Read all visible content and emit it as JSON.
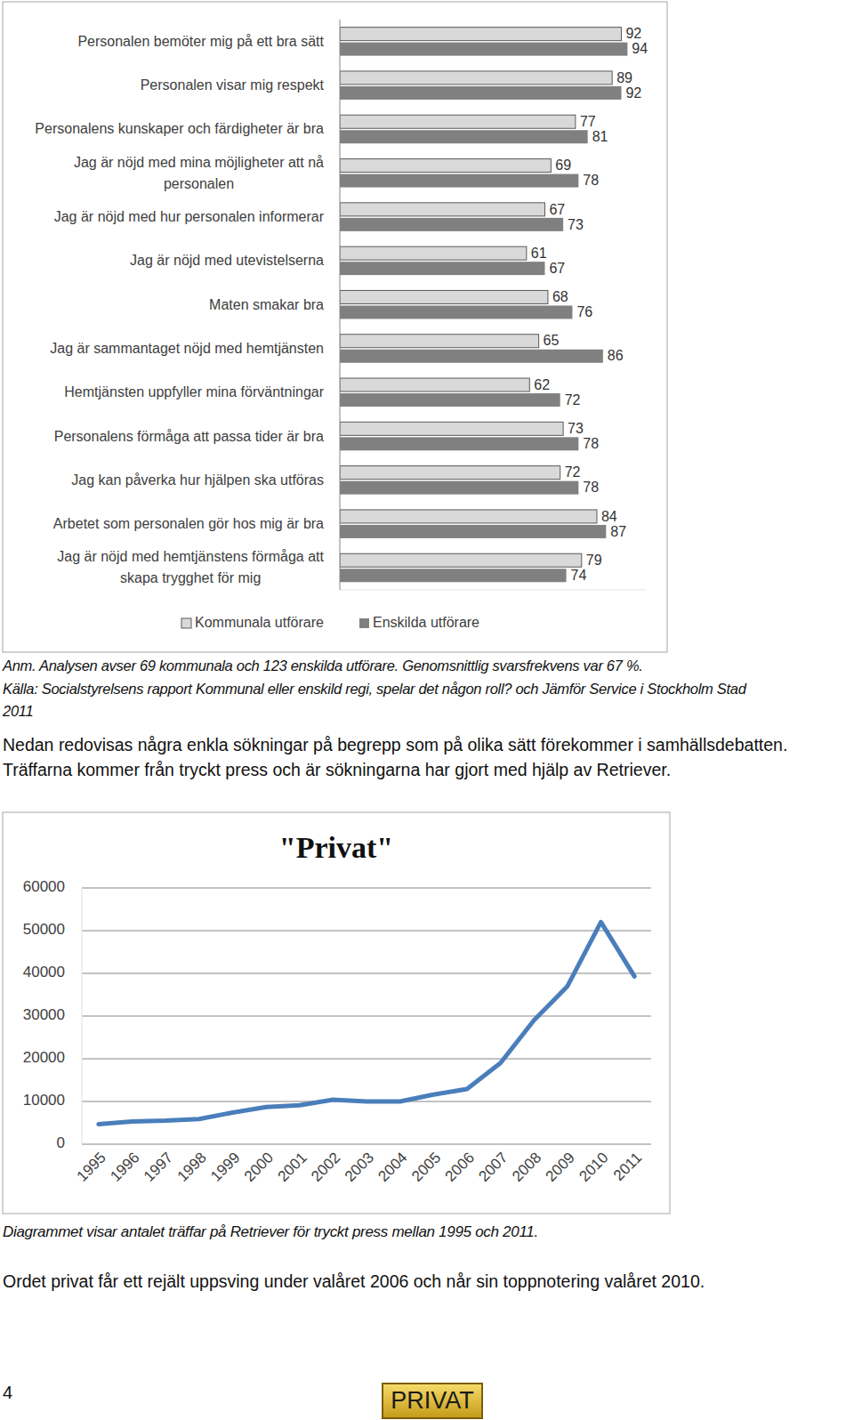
{
  "chart_data": [
    {
      "type": "bar",
      "orientation": "horizontal",
      "categories": [
        "Personalen bemöter mig på ett bra sätt",
        "Personalen visar mig respekt",
        "Personalens kunskaper och färdigheter är bra",
        "Jag är nöjd med mina möjligheter att nå personalen",
        "Jag är nöjd med hur personalen informerar",
        "Jag är nöjd med utevistelserna",
        "Maten smakar bra",
        "Jag är sammantaget nöjd med hemtjänsten",
        "Hemtjänsten uppfyller mina förväntningar",
        "Personalens förmåga att passa tider är bra",
        "Jag kan påverka hur hjälpen ska utföras",
        "Arbetet som personalen gör hos mig är bra",
        "Jag är nöjd med hemtjänstens förmåga att skapa trygghet för mig"
      ],
      "series": [
        {
          "name": "Kommunala utförare",
          "color": "#d9d9d9",
          "values": [
            92,
            89,
            77,
            69,
            67,
            61,
            68,
            65,
            62,
            73,
            72,
            84,
            79
          ]
        },
        {
          "name": "Enskilda utförare",
          "color": "#808080",
          "values": [
            94,
            92,
            81,
            78,
            73,
            67,
            76,
            86,
            72,
            78,
            78,
            87,
            74
          ]
        }
      ],
      "xlim": [
        0,
        100
      ],
      "data_labels": true,
      "tick_labels": "y",
      "legend": "bottom",
      "grid": false
    },
    {
      "type": "line",
      "title": "\"Privat\"",
      "categories": [
        "1995",
        "1996",
        "1997",
        "1998",
        "1999",
        "2000",
        "2001",
        "2002",
        "2003",
        "2004",
        "2005",
        "2006",
        "2007",
        "2008",
        "2009",
        "2010",
        "2011"
      ],
      "values": [
        4700,
        5300,
        5500,
        5900,
        7400,
        8700,
        9100,
        10400,
        10000,
        10000,
        11600,
        12900,
        19000,
        29000,
        37000,
        52000,
        39300
      ],
      "color": "#4a7ebb",
      "ylim": [
        0,
        60000
      ],
      "yticks": [
        0,
        10000,
        20000,
        30000,
        40000,
        50000,
        60000
      ],
      "grid": true
    }
  ],
  "notes": [
    "Anm. Analysen avser 69 kommunala och 123 enskilda utförare. Genomsnittlig svarsfrekvens var 67 %.",
    "Källa: Socialstyrelsens rapport Kommunal eller enskild regi, spelar det någon roll? och Jämför Service i Stockholm Stad",
    "2011"
  ],
  "intro": [
    "Nedan redovisas några enkla sökningar på begrepp som på olika sätt förekommer i samhällsdebatten.",
    "Träffarna kommer från tryckt press och är sökningarna har gjort med hjälp av Retriever."
  ],
  "caption": "Diagrammet visar antalet träffar på Retriever för tryckt press mellan 1995 och 2011.",
  "comment": "Ordet privat får ett rejält uppsving under valåret 2006 och når sin toppnotering valåret 2010.",
  "page_number": 4,
  "logo": "PRIVAT"
}
